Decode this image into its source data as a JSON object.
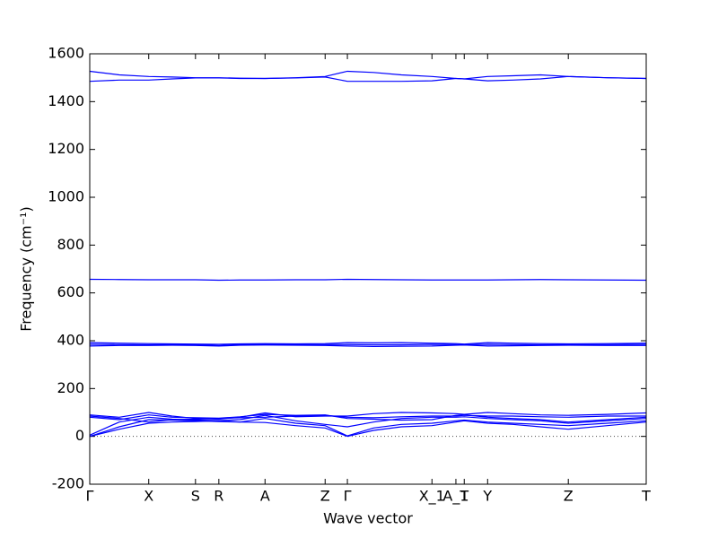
{
  "chart_data": {
    "type": "line",
    "x_label": "Wave vector",
    "y_label": "Frequency (cm⁻¹)",
    "xlim": [
      0,
      1
    ],
    "xticks": [
      {
        "value": 0,
        "label": "Γ"
      },
      {
        "value": 0.106,
        "label": "X"
      },
      {
        "value": 0.19,
        "label": "S"
      },
      {
        "value": 0.232,
        "label": "R"
      },
      {
        "value": 0.315,
        "label": "A"
      },
      {
        "value": 0.423,
        "label": "Z"
      },
      {
        "value": 0.463,
        "label": "Γ"
      },
      {
        "value": 0.615,
        "label": "X_1"
      },
      {
        "value": 0.658,
        "label": "A_1"
      },
      {
        "value": 0.673,
        "label": "T"
      },
      {
        "value": 0.715,
        "label": "Y"
      },
      {
        "value": 0.86,
        "label": "Z"
      },
      {
        "value": 1,
        "label": "T"
      }
    ],
    "ylim": [
      -200,
      1600
    ],
    "yticks": [
      -200,
      0,
      200,
      400,
      600,
      800,
      1000,
      1200,
      1400,
      1600
    ],
    "x": [
      0,
      0.053,
      0.106,
      0.148,
      0.19,
      0.232,
      0.27,
      0.315,
      0.37,
      0.423,
      0.463,
      0.51,
      0.56,
      0.615,
      0.658,
      0.673,
      0.715,
      0.76,
      0.81,
      0.86,
      0.93,
      1
    ],
    "series": [
      {
        "color": "#0000ff",
        "values": [
          1527,
          1512,
          1505,
          1503,
          1500,
          1500,
          1498,
          1497,
          1500,
          1505,
          1527,
          1522,
          1512,
          1505,
          1497,
          1495,
          1505,
          1508,
          1512,
          1505,
          1500,
          1497
        ]
      },
      {
        "color": "#0000ff",
        "values": [
          1485,
          1490,
          1490,
          1495,
          1499,
          1499,
          1497,
          1497,
          1499,
          1503,
          1485,
          1485,
          1485,
          1487,
          1497,
          1495,
          1487,
          1490,
          1495,
          1505,
          1500,
          1497
        ]
      },
      {
        "color": "#0000ff",
        "values": [
          657,
          656,
          655,
          655,
          655,
          653,
          654,
          654,
          655,
          655,
          657,
          656,
          655,
          654,
          654,
          654,
          654,
          655,
          656,
          655,
          654,
          653
        ]
      },
      {
        "color": "#0000ff",
        "values": [
          392,
          390,
          388,
          387,
          386,
          385,
          387,
          388,
          387,
          388,
          392,
          391,
          392,
          390,
          388,
          386,
          392,
          390,
          388,
          387,
          388,
          390
        ]
      },
      {
        "color": "#0000ff",
        "values": [
          385,
          384,
          383,
          384,
          383,
          380,
          384,
          385,
          384,
          384,
          384,
          383,
          383,
          385,
          384,
          383,
          385,
          384,
          383,
          383,
          384,
          385
        ]
      },
      {
        "color": "#0000ff",
        "values": [
          378,
          380,
          380,
          381,
          380,
          378,
          381,
          382,
          381,
          380,
          378,
          376,
          377,
          378,
          381,
          382,
          378,
          379,
          380,
          381,
          380,
          380
        ]
      },
      {
        "color": "#0000ff",
        "values": [
          0,
          30,
          55,
          60,
          62,
          65,
          60,
          58,
          45,
          35,
          0,
          25,
          40,
          45,
          60,
          65,
          55,
          50,
          40,
          30,
          45,
          60
        ]
      },
      {
        "color": "#0000ff",
        "values": [
          0,
          40,
          70,
          68,
          65,
          62,
          60,
          75,
          55,
          45,
          2,
          35,
          50,
          55,
          65,
          68,
          60,
          55,
          50,
          45,
          55,
          65
        ]
      },
      {
        "color": "#0000ff",
        "values": [
          5,
          60,
          80,
          72,
          68,
          66,
          70,
          88,
          65,
          50,
          40,
          60,
          75,
          80,
          80,
          82,
          75,
          70,
          65,
          55,
          65,
          75
        ]
      },
      {
        "color": "#0000ff",
        "values": [
          90,
          80,
          100,
          85,
          75,
          72,
          80,
          98,
          82,
          85,
          85,
          95,
          100,
          98,
          95,
          92,
          100,
          95,
          90,
          88,
          92,
          98
        ]
      },
      {
        "color": "#0000ff",
        "values": [
          85,
          75,
          60,
          70,
          72,
          75,
          78,
          80,
          85,
          88,
          80,
          78,
          82,
          85,
          85,
          88,
          85,
          85,
          82,
          80,
          85,
          85
        ]
      },
      {
        "color": "#0000ff",
        "values": [
          80,
          70,
          90,
          80,
          78,
          76,
          82,
          92,
          88,
          90,
          75,
          72,
          68,
          70,
          88,
          90,
          80,
          75,
          70,
          60,
          70,
          80
        ]
      }
    ]
  }
}
